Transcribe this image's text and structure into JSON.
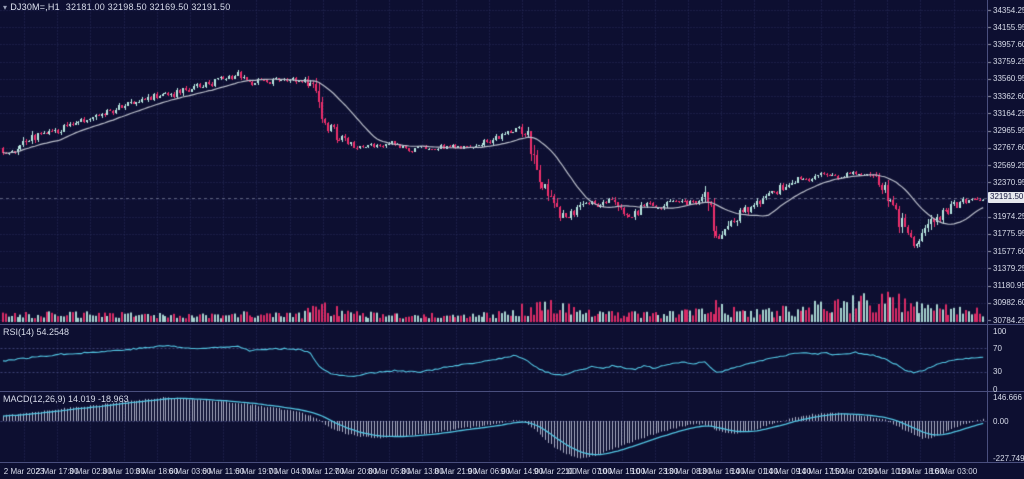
{
  "header": {
    "symbol_period": "DJ30M=,H1",
    "ohlc": "32181.00 32198.50 32169.50 32191.50",
    "symbol_icon": "▾"
  },
  "colors": {
    "background": "#0d0f31",
    "grid": "#2a2e5e",
    "bull": "#b7e7e0",
    "bear": "#ee2f6c",
    "ma_line": "#b9bdc9",
    "indicator_line": "#52c4e2",
    "histogram": "#c9cde0",
    "axis_text": "#d8dcea",
    "separator": "#4a4f7e",
    "level_line": "#3f4377",
    "current_price_line": "#9aa0b8",
    "price_tag_bg": "#e6e8ee",
    "price_tag_text": "#13143a"
  },
  "chart_data": {
    "type": "candlestick",
    "symbol": "DJ30M",
    "timeframe": "H1",
    "title": "DJ30M=,H1",
    "ohlc_display": {
      "open": "32181.00",
      "high": "32198.50",
      "low": "32169.50",
      "close": "32191.50"
    },
    "current_price": "32191.50",
    "ylim": [
      30784.25,
      34354.25
    ],
    "grid": true,
    "price_axis_labels": [
      "34354.25",
      "34155.95",
      "33957.60",
      "33759.25",
      "33560.95",
      "33362.60",
      "33164.25",
      "32965.95",
      "32767.60",
      "32569.25",
      "32370.95",
      "32172.60",
      "31974.25",
      "31775.95",
      "31577.60",
      "31379.25",
      "31180.95",
      "30982.60",
      "30784.25"
    ],
    "time_axis_labels": [
      "2 Mar 2023",
      "2 Mar 17:00",
      "3 Mar 02:00",
      "3 Mar 10:00",
      "3 Mar 18:00",
      "6 Mar 03:00",
      "6 Mar 11:00",
      "6 Mar 19:00",
      "7 Mar 04:00",
      "7 Mar 12:00",
      "7 Mar 20:00",
      "8 Mar 05:00",
      "8 Mar 13:00",
      "8 Mar 21:00",
      "9 Mar 06:00",
      "9 Mar 14:00",
      "9 Mar 22:00",
      "10 Mar 07:00",
      "10 Mar 15:00",
      "10 Mar 23:00",
      "13 Mar 08:00",
      "13 Mar 16:00",
      "14 Mar 01:00",
      "14 Mar 09:00",
      "14 Mar 17:00",
      "15 Mar 02:00",
      "15 Mar 10:00",
      "15 Mar 18:00",
      "16 Mar 03:00"
    ],
    "price_keyframes": [
      [
        0,
        32760
      ],
      [
        12,
        32700
      ],
      [
        25,
        32820
      ],
      [
        40,
        32930
      ],
      [
        55,
        32960
      ],
      [
        70,
        33020
      ],
      [
        85,
        33080
      ],
      [
        100,
        33150
      ],
      [
        115,
        33190
      ],
      [
        130,
        33280
      ],
      [
        145,
        33330
      ],
      [
        160,
        33390
      ],
      [
        172,
        33370
      ],
      [
        185,
        33430
      ],
      [
        200,
        33470
      ],
      [
        215,
        33530
      ],
      [
        228,
        33570
      ],
      [
        238,
        33610
      ],
      [
        248,
        33500
      ],
      [
        258,
        33540
      ],
      [
        270,
        33520
      ],
      [
        282,
        33560
      ],
      [
        295,
        33550
      ],
      [
        305,
        33530
      ],
      [
        313,
        33500
      ],
      [
        320,
        33280
      ],
      [
        327,
        33050
      ],
      [
        334,
        32930
      ],
      [
        342,
        32880
      ],
      [
        352,
        32830
      ],
      [
        362,
        32760
      ],
      [
        372,
        32800
      ],
      [
        382,
        32780
      ],
      [
        392,
        32820
      ],
      [
        402,
        32760
      ],
      [
        412,
        32740
      ],
      [
        422,
        32780
      ],
      [
        432,
        32750
      ],
      [
        442,
        32770
      ],
      [
        452,
        32790
      ],
      [
        462,
        32770
      ],
      [
        472,
        32800
      ],
      [
        482,
        32820
      ],
      [
        492,
        32860
      ],
      [
        502,
        32900
      ],
      [
        512,
        32980
      ],
      [
        520,
        33000
      ],
      [
        528,
        32880
      ],
      [
        536,
        32620
      ],
      [
        544,
        32350
      ],
      [
        552,
        32150
      ],
      [
        560,
        32020
      ],
      [
        568,
        31960
      ],
      [
        576,
        32060
      ],
      [
        584,
        32120
      ],
      [
        592,
        32160
      ],
      [
        600,
        32080
      ],
      [
        608,
        32180
      ],
      [
        616,
        32090
      ],
      [
        624,
        32020
      ],
      [
        632,
        31970
      ],
      [
        640,
        32060
      ],
      [
        648,
        32130
      ],
      [
        656,
        32050
      ],
      [
        664,
        32100
      ],
      [
        672,
        32140
      ],
      [
        680,
        32160
      ],
      [
        688,
        32120
      ],
      [
        696,
        32160
      ],
      [
        704,
        32200
      ],
      [
        710,
        32000
      ],
      [
        716,
        31700
      ],
      [
        722,
        31780
      ],
      [
        730,
        31900
      ],
      [
        738,
        31980
      ],
      [
        746,
        32050
      ],
      [
        754,
        32120
      ],
      [
        762,
        32170
      ],
      [
        770,
        32230
      ],
      [
        778,
        32280
      ],
      [
        786,
        32340
      ],
      [
        794,
        32400
      ],
      [
        802,
        32440
      ],
      [
        810,
        32400
      ],
      [
        818,
        32450
      ],
      [
        826,
        32480
      ],
      [
        834,
        32420
      ],
      [
        842,
        32450
      ],
      [
        850,
        32480
      ],
      [
        858,
        32440
      ],
      [
        866,
        32470
      ],
      [
        874,
        32400
      ],
      [
        882,
        32300
      ],
      [
        890,
        32180
      ],
      [
        898,
        31950
      ],
      [
        906,
        31750
      ],
      [
        914,
        31620
      ],
      [
        922,
        31700
      ],
      [
        930,
        31850
      ],
      [
        938,
        31950
      ],
      [
        946,
        32030
      ],
      [
        954,
        32090
      ],
      [
        962,
        32140
      ],
      [
        970,
        32160
      ],
      [
        978,
        32170
      ],
      [
        986,
        32191.5
      ]
    ],
    "volume_keyframes": [
      [
        0,
        5
      ],
      [
        60,
        6
      ],
      [
        120,
        6
      ],
      [
        180,
        5
      ],
      [
        240,
        6
      ],
      [
        300,
        5
      ],
      [
        318,
        13
      ],
      [
        330,
        10
      ],
      [
        360,
        6
      ],
      [
        420,
        5
      ],
      [
        470,
        5
      ],
      [
        510,
        7
      ],
      [
        536,
        15
      ],
      [
        560,
        12
      ],
      [
        590,
        7
      ],
      [
        630,
        6
      ],
      [
        665,
        6
      ],
      [
        700,
        11
      ],
      [
        716,
        13
      ],
      [
        740,
        7
      ],
      [
        770,
        8
      ],
      [
        800,
        12
      ],
      [
        830,
        15
      ],
      [
        860,
        17
      ],
      [
        890,
        20
      ],
      [
        912,
        18
      ],
      [
        935,
        12
      ],
      [
        960,
        9
      ],
      [
        986,
        8
      ]
    ],
    "rsi": {
      "label": "RSI(14) 54.2548",
      "current": 54.2548,
      "period": 14,
      "scale_labels": [
        "100",
        "70",
        "30",
        "0"
      ],
      "levels": [
        70,
        30
      ],
      "keyframes": [
        [
          0,
          48
        ],
        [
          20,
          52
        ],
        [
          40,
          56
        ],
        [
          60,
          60
        ],
        [
          80,
          62
        ],
        [
          100,
          64
        ],
        [
          120,
          67
        ],
        [
          140,
          70
        ],
        [
          155,
          73
        ],
        [
          168,
          75
        ],
        [
          180,
          72
        ],
        [
          195,
          69
        ],
        [
          210,
          71
        ],
        [
          225,
          73
        ],
        [
          238,
          74
        ],
        [
          250,
          66
        ],
        [
          262,
          68
        ],
        [
          275,
          69
        ],
        [
          288,
          70
        ],
        [
          300,
          68
        ],
        [
          310,
          63
        ],
        [
          318,
          42
        ],
        [
          326,
          30
        ],
        [
          336,
          24
        ],
        [
          348,
          22
        ],
        [
          360,
          24
        ],
        [
          372,
          28
        ],
        [
          384,
          30
        ],
        [
          396,
          32
        ],
        [
          408,
          30
        ],
        [
          420,
          29
        ],
        [
          432,
          33
        ],
        [
          444,
          37
        ],
        [
          456,
          40
        ],
        [
          468,
          43
        ],
        [
          480,
          46
        ],
        [
          492,
          50
        ],
        [
          504,
          54
        ],
        [
          514,
          58
        ],
        [
          524,
          52
        ],
        [
          534,
          40
        ],
        [
          544,
          30
        ],
        [
          554,
          26
        ],
        [
          564,
          24
        ],
        [
          574,
          30
        ],
        [
          584,
          35
        ],
        [
          594,
          39
        ],
        [
          604,
          36
        ],
        [
          614,
          41
        ],
        [
          624,
          36
        ],
        [
          634,
          33
        ],
        [
          644,
          40
        ],
        [
          654,
          36
        ],
        [
          664,
          40
        ],
        [
          674,
          44
        ],
        [
          684,
          46
        ],
        [
          694,
          44
        ],
        [
          704,
          48
        ],
        [
          712,
          34
        ],
        [
          718,
          28
        ],
        [
          726,
          32
        ],
        [
          736,
          38
        ],
        [
          746,
          43
        ],
        [
          756,
          47
        ],
        [
          766,
          51
        ],
        [
          776,
          54
        ],
        [
          786,
          58
        ],
        [
          796,
          61
        ],
        [
          806,
          63
        ],
        [
          816,
          60
        ],
        [
          826,
          63
        ],
        [
          836,
          58
        ],
        [
          846,
          61
        ],
        [
          856,
          63
        ],
        [
          866,
          60
        ],
        [
          876,
          57
        ],
        [
          886,
          51
        ],
        [
          896,
          42
        ],
        [
          906,
          32
        ],
        [
          916,
          28
        ],
        [
          926,
          34
        ],
        [
          936,
          42
        ],
        [
          946,
          47
        ],
        [
          956,
          50
        ],
        [
          966,
          52
        ],
        [
          976,
          53
        ],
        [
          986,
          54.25
        ]
      ]
    },
    "macd": {
      "label": "MACD(12,26,9) 14.019 -18.963",
      "current_main": 14.019,
      "current_signal": -18.963,
      "scale_labels": [
        "146.666",
        "0.00",
        "-227.749"
      ],
      "scale_values": [
        146.666,
        0.0,
        -227.749
      ],
      "keyframes": [
        [
          0,
          30
        ],
        [
          20,
          45
        ],
        [
          40,
          60
        ],
        [
          60,
          75
        ],
        [
          80,
          88
        ],
        [
          100,
          100
        ],
        [
          120,
          115
        ],
        [
          140,
          128
        ],
        [
          155,
          138
        ],
        [
          168,
          146
        ],
        [
          180,
          140
        ],
        [
          195,
          132
        ],
        [
          210,
          124
        ],
        [
          225,
          118
        ],
        [
          240,
          108
        ],
        [
          255,
          96
        ],
        [
          270,
          84
        ],
        [
          285,
          70
        ],
        [
          300,
          52
        ],
        [
          310,
          35
        ],
        [
          320,
          0
        ],
        [
          330,
          -40
        ],
        [
          342,
          -70
        ],
        [
          354,
          -90
        ],
        [
          366,
          -100
        ],
        [
          378,
          -104
        ],
        [
          390,
          -100
        ],
        [
          402,
          -94
        ],
        [
          414,
          -86
        ],
        [
          426,
          -76
        ],
        [
          438,
          -66
        ],
        [
          450,
          -56
        ],
        [
          462,
          -46
        ],
        [
          474,
          -36
        ],
        [
          486,
          -26
        ],
        [
          498,
          -14
        ],
        [
          508,
          -4
        ],
        [
          516,
          4
        ],
        [
          524,
          -8
        ],
        [
          532,
          -40
        ],
        [
          540,
          -85
        ],
        [
          548,
          -130
        ],
        [
          556,
          -168
        ],
        [
          564,
          -196
        ],
        [
          572,
          -216
        ],
        [
          580,
          -226
        ],
        [
          590,
          -218
        ],
        [
          600,
          -200
        ],
        [
          610,
          -178
        ],
        [
          620,
          -155
        ],
        [
          630,
          -132
        ],
        [
          640,
          -110
        ],
        [
          650,
          -88
        ],
        [
          660,
          -68
        ],
        [
          670,
          -50
        ],
        [
          680,
          -35
        ],
        [
          690,
          -24
        ],
        [
          700,
          -18
        ],
        [
          708,
          -30
        ],
        [
          716,
          -55
        ],
        [
          724,
          -72
        ],
        [
          732,
          -80
        ],
        [
          740,
          -74
        ],
        [
          748,
          -62
        ],
        [
          756,
          -48
        ],
        [
          764,
          -33
        ],
        [
          772,
          -18
        ],
        [
          780,
          -4
        ],
        [
          788,
          10
        ],
        [
          796,
          22
        ],
        [
          804,
          33
        ],
        [
          812,
          41
        ],
        [
          820,
          47
        ],
        [
          828,
          50
        ],
        [
          836,
          48
        ],
        [
          844,
          44
        ],
        [
          852,
          40
        ],
        [
          860,
          35
        ],
        [
          868,
          28
        ],
        [
          876,
          18
        ],
        [
          884,
          6
        ],
        [
          892,
          -12
        ],
        [
          900,
          -40
        ],
        [
          908,
          -70
        ],
        [
          916,
          -95
        ],
        [
          924,
          -108
        ],
        [
          932,
          -100
        ],
        [
          940,
          -82
        ],
        [
          948,
          -60
        ],
        [
          956,
          -38
        ],
        [
          964,
          -20
        ],
        [
          972,
          -5
        ],
        [
          980,
          8
        ],
        [
          986,
          14
        ]
      ]
    }
  }
}
